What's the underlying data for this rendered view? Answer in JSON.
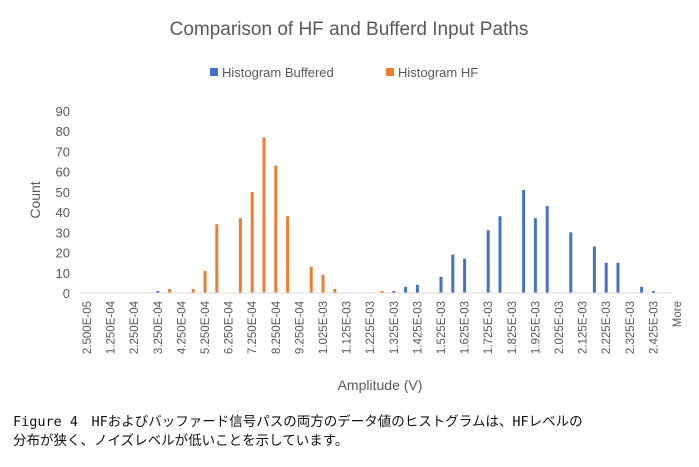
{
  "chart_data": {
    "type": "bar",
    "title": "Comparison of HF and Bufferd Input Paths",
    "xlabel": "Amplitude (V)",
    "ylabel": "Count",
    "ylim": [
      0,
      90
    ],
    "yticks": [
      0,
      10,
      20,
      30,
      40,
      50,
      60,
      70,
      80,
      90
    ],
    "grid": false,
    "legend_position": "top",
    "x_tick_labels": [
      "2.500E-05",
      "1.250E-04",
      "2.250E-04",
      "3.250E-04",
      "4.250E-04",
      "5.250E-04",
      "6.250E-04",
      "7.250E-04",
      "8.250E-04",
      "9.250E-04",
      "1.025E-03",
      "1.125E-03",
      "1.225E-03",
      "1.325E-03",
      "1.425E-03",
      "1.525E-03",
      "1.625E-03",
      "1.725E-03",
      "1.825E-03",
      "1.925E-03",
      "2.025E-03",
      "2.125E-03",
      "2.225E-03",
      "2.325E-03",
      "2.425E-03",
      "More"
    ],
    "series": [
      {
        "name": "Histogram Buffered",
        "color": "#4472c4",
        "points": [
          {
            "x": "3.250E-04",
            "y": 1
          },
          {
            "x": "1.325E-03",
            "y": 1
          },
          {
            "x": "1.375E-03",
            "y": 3
          },
          {
            "x": "1.425E-03",
            "y": 4
          },
          {
            "x": "1.525E-03",
            "y": 8
          },
          {
            "x": "1.575E-03",
            "y": 19
          },
          {
            "x": "1.625E-03",
            "y": 17
          },
          {
            "x": "1.725E-03",
            "y": 31
          },
          {
            "x": "1.775E-03",
            "y": 38
          },
          {
            "x": "1.875E-03",
            "y": 51
          },
          {
            "x": "1.925E-03",
            "y": 37
          },
          {
            "x": "1.975E-03",
            "y": 43
          },
          {
            "x": "2.075E-03",
            "y": 30
          },
          {
            "x": "2.175E-03",
            "y": 23
          },
          {
            "x": "2.225E-03",
            "y": 15
          },
          {
            "x": "2.275E-03",
            "y": 15
          },
          {
            "x": "2.375E-03",
            "y": 3
          },
          {
            "x": "2.425E-03",
            "y": 1
          }
        ]
      },
      {
        "name": "Histogram HF",
        "color": "#ed7d31",
        "points": [
          {
            "x": "3.750E-04",
            "y": 2
          },
          {
            "x": "4.750E-04",
            "y": 2
          },
          {
            "x": "5.250E-04",
            "y": 11
          },
          {
            "x": "5.750E-04",
            "y": 34
          },
          {
            "x": "6.750E-04",
            "y": 37
          },
          {
            "x": "7.250E-04",
            "y": 50
          },
          {
            "x": "7.750E-04",
            "y": 77
          },
          {
            "x": "8.250E-04",
            "y": 63
          },
          {
            "x": "8.750E-04",
            "y": 38
          },
          {
            "x": "9.750E-04",
            "y": 13
          },
          {
            "x": "1.025E-03",
            "y": 9
          },
          {
            "x": "1.075E-03",
            "y": 2
          },
          {
            "x": "1.275E-03",
            "y": 1
          }
        ]
      }
    ]
  },
  "caption": {
    "line1": "Figure 4　HFおよびバッファード信号パスの両方のデータ値のヒストグラムは、HFレベルの",
    "line2": "分布が狭く、ノイズレベルが低いことを示しています。"
  }
}
